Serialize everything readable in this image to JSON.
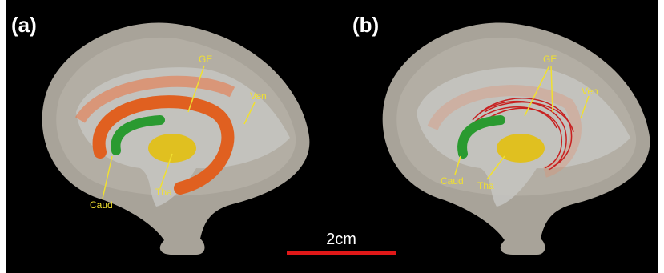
{
  "panels": [
    {
      "label": "(a)",
      "annotations": [
        "GE",
        "Ven",
        "Caud",
        "Tha"
      ]
    },
    {
      "label": "(b)",
      "annotations": [
        "GE",
        "Ven",
        "Caud",
        "Tha"
      ]
    }
  ],
  "scale_bar": {
    "label": "2cm"
  }
}
